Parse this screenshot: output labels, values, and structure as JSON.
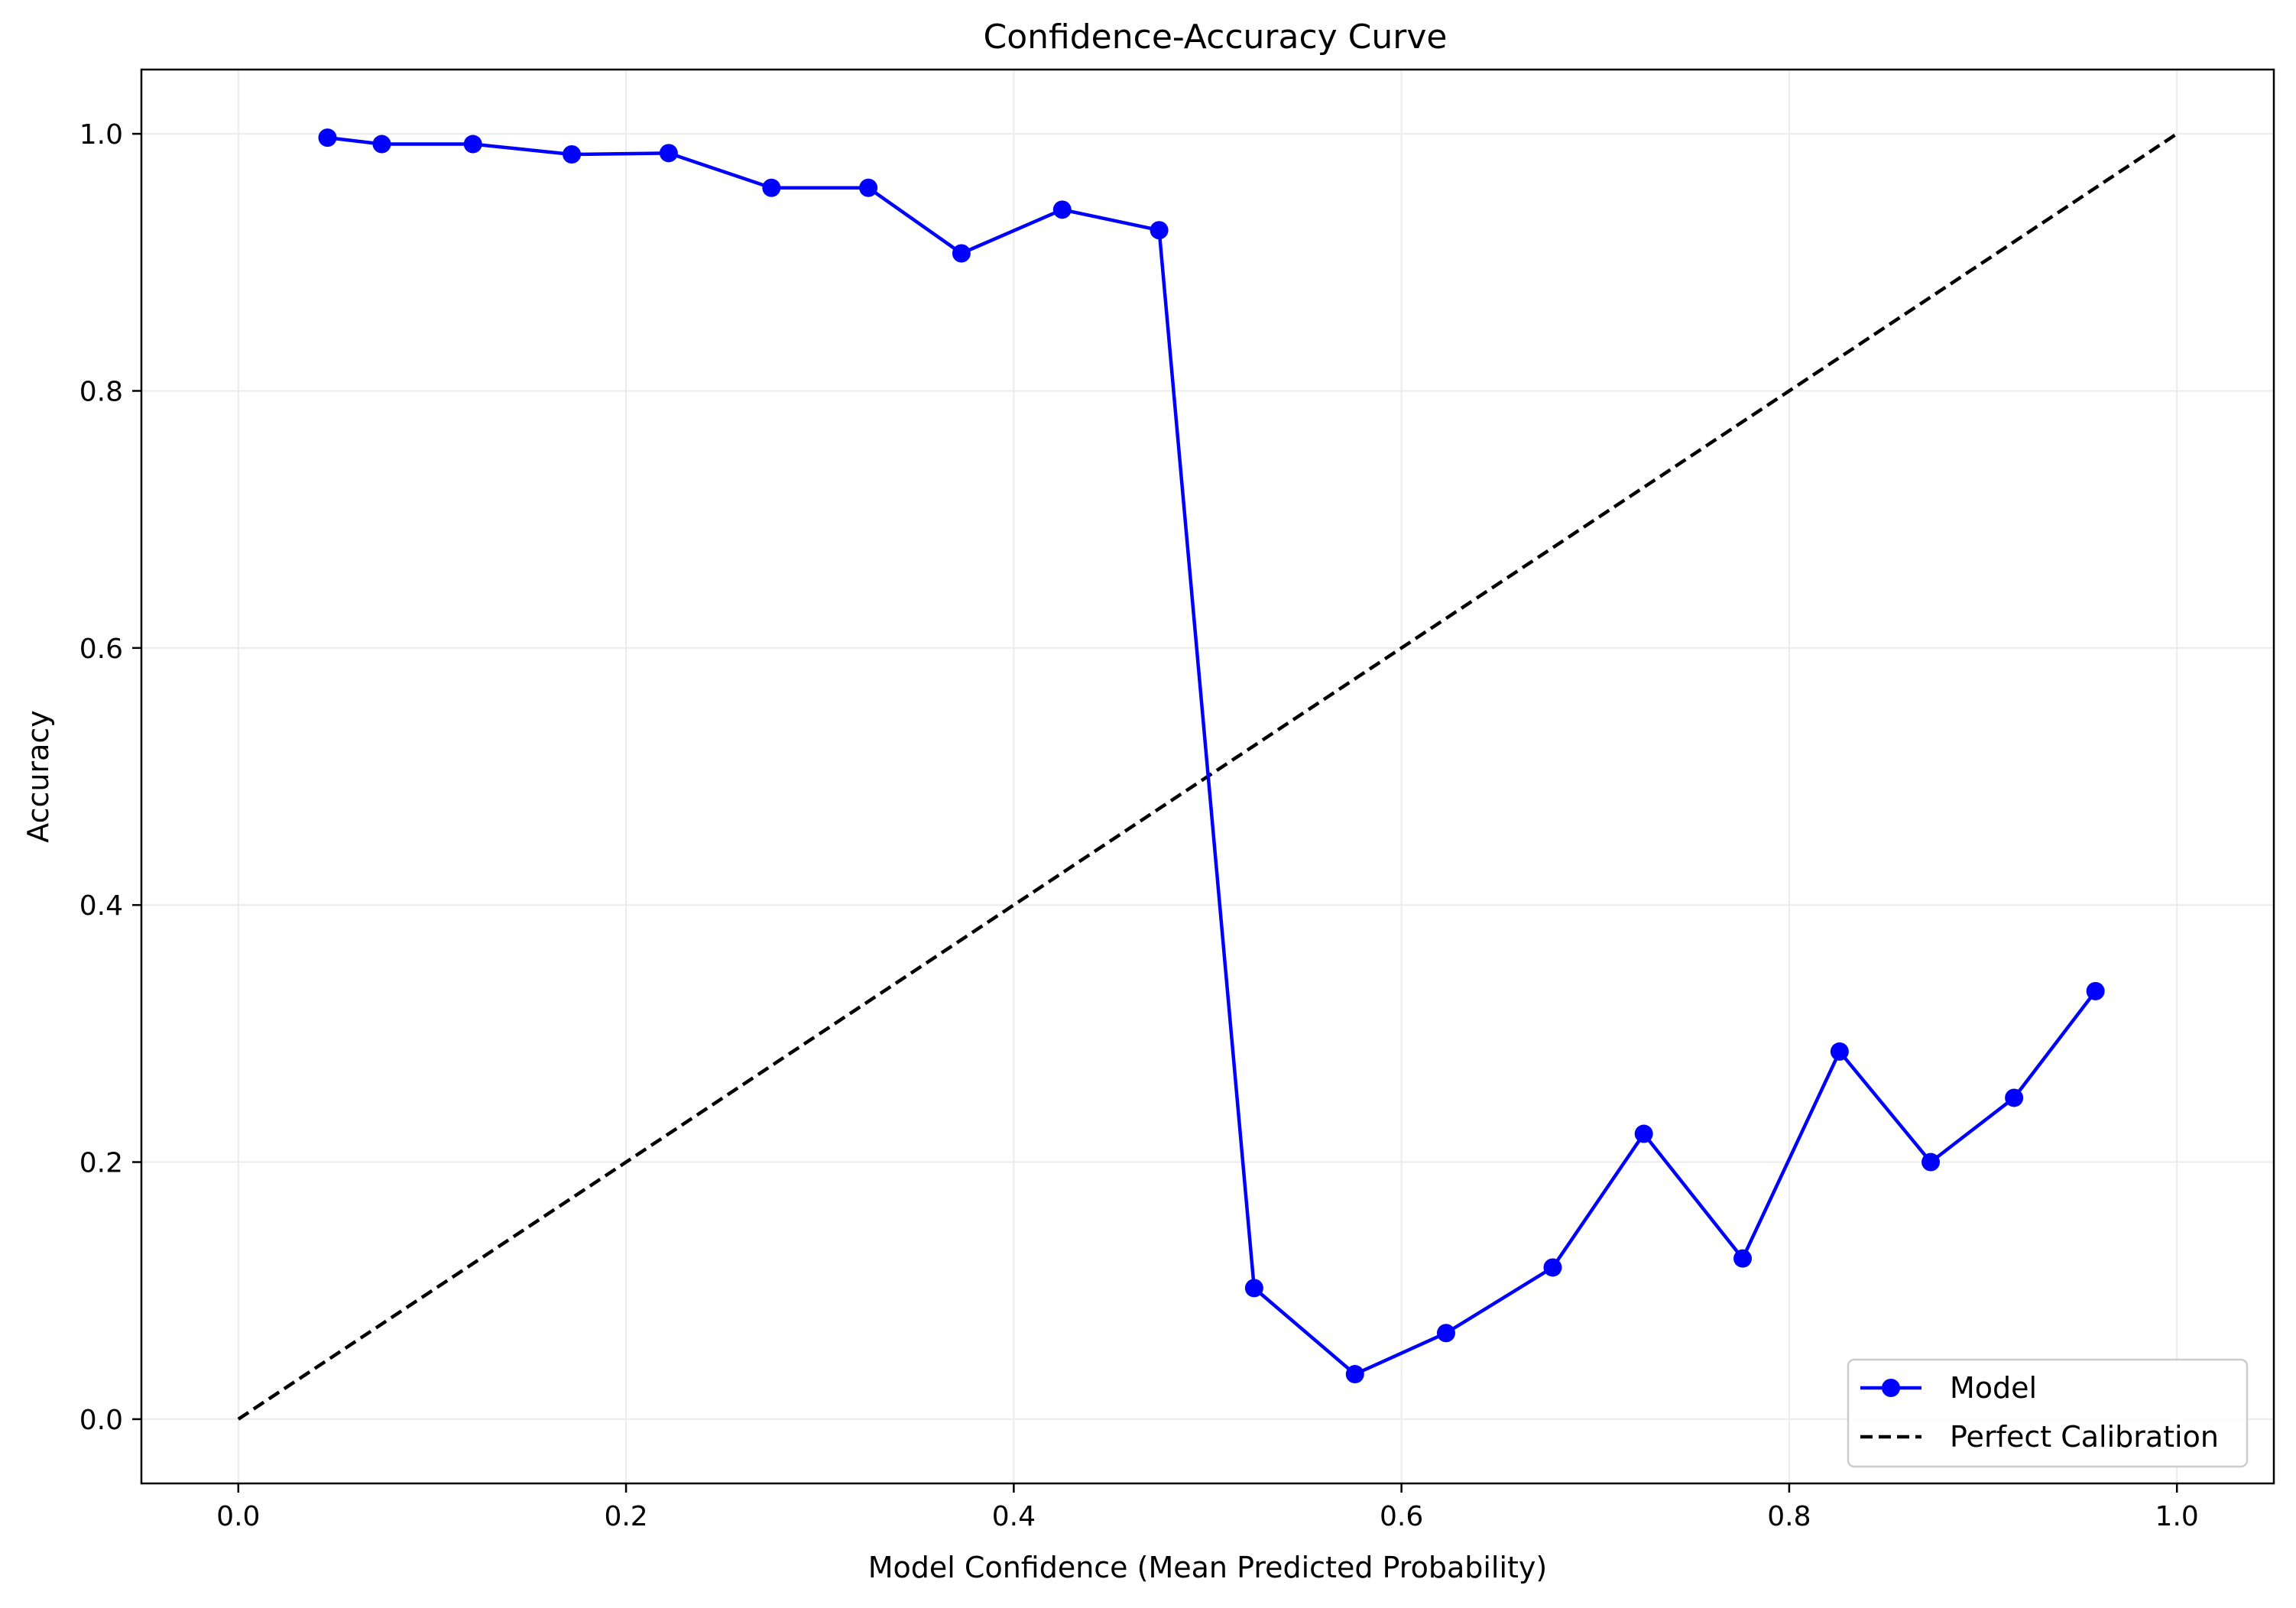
{
  "chart_data": {
    "type": "line",
    "title": "Confidence-Accuracy Curve",
    "xlabel": "Model Confidence (Mean Predicted Probability)",
    "ylabel": "Accuracy",
    "xlim": [
      -0.05,
      1.05
    ],
    "ylim": [
      -0.05,
      1.05
    ],
    "xticks": [
      0.0,
      0.2,
      0.4,
      0.6,
      0.8,
      1.0
    ],
    "xtick_labels": [
      "0.0",
      "0.2",
      "0.4",
      "0.6",
      "0.8",
      "1.0"
    ],
    "yticks": [
      0.0,
      0.2,
      0.4,
      0.6,
      0.8,
      1.0
    ],
    "ytick_labels": [
      "0.0",
      "0.2",
      "0.4",
      "0.6",
      "0.8",
      "1.0"
    ],
    "grid": true,
    "legend_position": "lower-right",
    "series": [
      {
        "name": "Model",
        "style": "solid-line-with-circle-markers",
        "color": "#0000ff",
        "x": [
          0.046,
          0.074,
          0.121,
          0.172,
          0.222,
          0.275,
          0.325,
          0.373,
          0.425,
          0.475,
          0.524,
          0.576,
          0.623,
          0.678,
          0.725,
          0.776,
          0.826,
          0.873,
          0.916,
          0.958
        ],
        "y": [
          0.997,
          0.992,
          0.992,
          0.984,
          0.985,
          0.958,
          0.958,
          0.907,
          0.941,
          0.925,
          0.102,
          0.035,
          0.067,
          0.118,
          0.222,
          0.125,
          0.286,
          0.2,
          0.25,
          0.333
        ]
      },
      {
        "name": "Perfect Calibration",
        "style": "dashed-line",
        "color": "#000000",
        "x": [
          0.0,
          1.0
        ],
        "y": [
          0.0,
          1.0
        ]
      }
    ]
  }
}
